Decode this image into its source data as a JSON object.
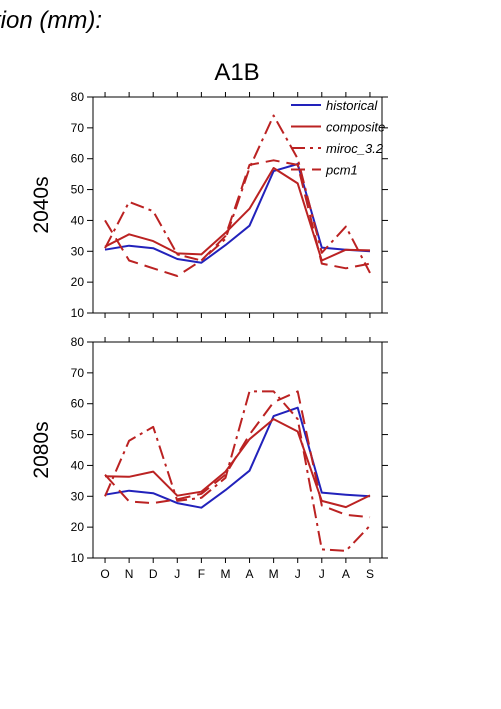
{
  "title_fragment": "tion (mm):",
  "scenario": "A1B",
  "colors": {
    "historical": "#2222bb",
    "composite": "#bb2222",
    "miroc_3.2": "#bb2222",
    "pcm1": "#bb2222",
    "axis": "#000000"
  },
  "chart_data": [
    {
      "type": "line",
      "panel_label": "2040s",
      "x": [
        "O",
        "N",
        "D",
        "J",
        "F",
        "M",
        "A",
        "M",
        "J",
        "J",
        "A",
        "S"
      ],
      "ylim": [
        10,
        80
      ],
      "yticks": [
        10,
        20,
        30,
        40,
        50,
        60,
        70,
        80
      ],
      "grid": false,
      "legend_position": "top-right",
      "series": [
        {
          "name": "historical",
          "style": "solid",
          "values": [
            30.5,
            31.8,
            31.0,
            27.5,
            26.3,
            32.0,
            38.3,
            56.0,
            58.3,
            31.2,
            30.5,
            30.0
          ]
        },
        {
          "name": "composite",
          "style": "solid",
          "values": [
            31.5,
            35.5,
            33.3,
            29.3,
            29.0,
            36.0,
            43.8,
            57.0,
            52.0,
            27.0,
            30.5,
            30.3
          ]
        },
        {
          "name": "miroc_3.2",
          "style": "dashdot",
          "values": [
            31.0,
            46.0,
            43.0,
            29.0,
            27.0,
            34.0,
            57.0,
            74.0,
            60.0,
            29.5,
            38.0,
            23.0
          ]
        },
        {
          "name": "pcm1",
          "style": "dashed",
          "values": [
            40.0,
            27.0,
            24.5,
            22.0,
            27.0,
            35.0,
            58.0,
            59.5,
            58.0,
            26.0,
            24.5,
            26.0
          ]
        }
      ]
    },
    {
      "type": "line",
      "panel_label": "2080s",
      "x": [
        "O",
        "N",
        "D",
        "J",
        "F",
        "M",
        "A",
        "M",
        "J",
        "J",
        "A",
        "S"
      ],
      "ylim": [
        10,
        80
      ],
      "yticks": [
        10,
        20,
        30,
        40,
        50,
        60,
        70,
        80
      ],
      "grid": false,
      "series": [
        {
          "name": "historical",
          "style": "solid",
          "values": [
            30.5,
            31.8,
            31.0,
            27.8,
            26.3,
            32.0,
            38.3,
            56.0,
            58.7,
            31.2,
            30.5,
            30.0
          ]
        },
        {
          "name": "composite",
          "style": "solid",
          "values": [
            36.5,
            36.3,
            38.0,
            30.2,
            31.5,
            38.0,
            48.5,
            55.0,
            51.0,
            28.5,
            26.5,
            30.3
          ]
        },
        {
          "name": "miroc_3.2",
          "style": "dashdot",
          "values": [
            30.0,
            48.0,
            52.5,
            28.5,
            29.5,
            36.0,
            64.0,
            64.0,
            55.0,
            12.8,
            12.3,
            20.5
          ]
        },
        {
          "name": "pcm1",
          "style": "dashed",
          "values": [
            37.0,
            28.3,
            27.8,
            29.0,
            30.8,
            37.0,
            50.0,
            60.5,
            64.0,
            27.0,
            24.0,
            23.2
          ]
        }
      ]
    }
  ]
}
